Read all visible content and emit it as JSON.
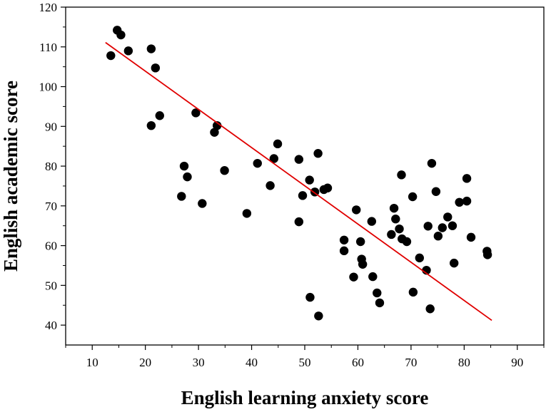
{
  "chart_data": {
    "type": "scatter",
    "title": "",
    "xlabel": "English learning anxiety score",
    "ylabel": "English academic score",
    "xlim": [
      5,
      95
    ],
    "ylim": [
      35,
      120
    ],
    "x_ticks": [
      10,
      20,
      30,
      40,
      50,
      60,
      70,
      80,
      90
    ],
    "y_ticks": [
      40,
      50,
      60,
      70,
      80,
      90,
      100,
      110,
      120
    ],
    "grid": false,
    "legend": "none",
    "series": [
      {
        "marker_color": "#000000",
        "points": [
          [
            13.5,
            107.8
          ],
          [
            14.7,
            114.2
          ],
          [
            15.4,
            113
          ],
          [
            16.8,
            109
          ],
          [
            21.1,
            109.5
          ],
          [
            21.9,
            104.7
          ],
          [
            21.1,
            90.2
          ],
          [
            22.7,
            92.7
          ],
          [
            29.5,
            93.4
          ],
          [
            33,
            88.5
          ],
          [
            33.5,
            90.2
          ],
          [
            27.3,
            80
          ],
          [
            27.9,
            77.3
          ],
          [
            26.8,
            72.4
          ],
          [
            30.7,
            70.6
          ],
          [
            34.9,
            78.9
          ],
          [
            39.1,
            68.1
          ],
          [
            41.1,
            80.7
          ],
          [
            43.5,
            75.1
          ],
          [
            44.2,
            81.9
          ],
          [
            44.9,
            85.6
          ],
          [
            48.9,
            81.7
          ],
          [
            48.9,
            66
          ],
          [
            49.6,
            72.6
          ],
          [
            50.9,
            76.5
          ],
          [
            51.9,
            73.5
          ],
          [
            52.5,
            83.2
          ],
          [
            53.6,
            74.1
          ],
          [
            54.3,
            74.5
          ],
          [
            51,
            47
          ],
          [
            52.6,
            42.3
          ],
          [
            57.4,
            61.4
          ],
          [
            57.4,
            58.7
          ],
          [
            59.2,
            52.1
          ],
          [
            59.7,
            69
          ],
          [
            60.5,
            61
          ],
          [
            60.7,
            56.6
          ],
          [
            60.9,
            55.3
          ],
          [
            62.6,
            66.1
          ],
          [
            62.8,
            52.2
          ],
          [
            63.6,
            48.1
          ],
          [
            64.1,
            45.6
          ],
          [
            66.3,
            62.8
          ],
          [
            66.8,
            69.4
          ],
          [
            67.1,
            66.7
          ],
          [
            67.8,
            64.2
          ],
          [
            68.2,
            77.8
          ],
          [
            68.3,
            61.7
          ],
          [
            69.2,
            61
          ],
          [
            70.3,
            72.3
          ],
          [
            70.4,
            48.3
          ],
          [
            71.6,
            56.9
          ],
          [
            72.9,
            53.8
          ],
          [
            73.2,
            64.9
          ],
          [
            73.6,
            44.1
          ],
          [
            73.9,
            80.7
          ],
          [
            74.7,
            73.6
          ],
          [
            75.1,
            62.4
          ],
          [
            75.9,
            64.5
          ],
          [
            76.9,
            67.2
          ],
          [
            77.8,
            65
          ],
          [
            78.1,
            55.6
          ],
          [
            79.1,
            70.9
          ],
          [
            80.5,
            71.2
          ],
          [
            80.5,
            76.9
          ],
          [
            81.3,
            62.1
          ],
          [
            84.3,
            58.6
          ],
          [
            84.4,
            57.7
          ]
        ]
      }
    ],
    "trendline": {
      "color": "#e00000",
      "points": [
        [
          12.5,
          111.1
        ],
        [
          85.2,
          41.2
        ]
      ]
    }
  }
}
